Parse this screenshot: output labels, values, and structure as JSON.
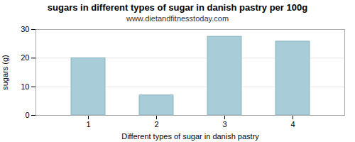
{
  "chart_data": {
    "type": "bar",
    "title": "sugars in different types of sugar in danish pastry per 100g",
    "subtitle": "www.dietandfitnesstoday.com",
    "xlabel": "Different types of sugar in danish pastry",
    "ylabel": "sugars (g)",
    "categories": [
      1,
      2,
      3,
      4
    ],
    "values": [
      20.0,
      7.0,
      27.5,
      25.8
    ],
    "color": "#a8cdd8",
    "ylim": [
      0,
      30
    ],
    "yticks": [
      0,
      10,
      20,
      30
    ],
    "grid": true
  }
}
